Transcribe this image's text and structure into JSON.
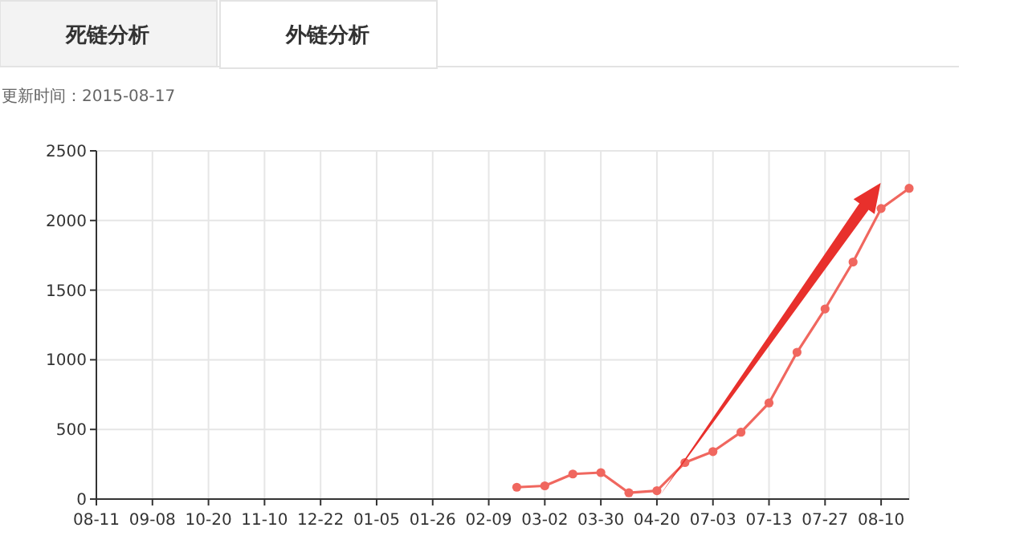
{
  "chart_data": {
    "type": "line",
    "subtitle": "更新时间：2015-08-17",
    "annotations": [
      "死链分析",
      "外链分析"
    ],
    "categories": [
      "08-11",
      null,
      "09-08",
      null,
      "10-20",
      null,
      "11-10",
      null,
      "12-22",
      null,
      "01-05",
      null,
      "01-26",
      null,
      "02-09",
      null,
      "03-02",
      null,
      "03-30",
      null,
      "04-20",
      null,
      "07-03",
      null,
      "07-13",
      null,
      "07-27",
      null,
      "08-10",
      null
    ],
    "series": [
      {
        "color": "#f0675f",
        "values": [
          null,
          null,
          null,
          null,
          null,
          null,
          null,
          null,
          null,
          null,
          null,
          null,
          null,
          null,
          null,
          85,
          95,
          180,
          190,
          45,
          60,
          262,
          341,
          480,
          690,
          1054,
          1365,
          1702,
          2086,
          2231
        ]
      }
    ],
    "ylim": [
      0,
      2500
    ],
    "yticks": [
      0,
      500,
      1000,
      1500,
      2000,
      2500
    ],
    "grid": true,
    "marker": "circle"
  }
}
